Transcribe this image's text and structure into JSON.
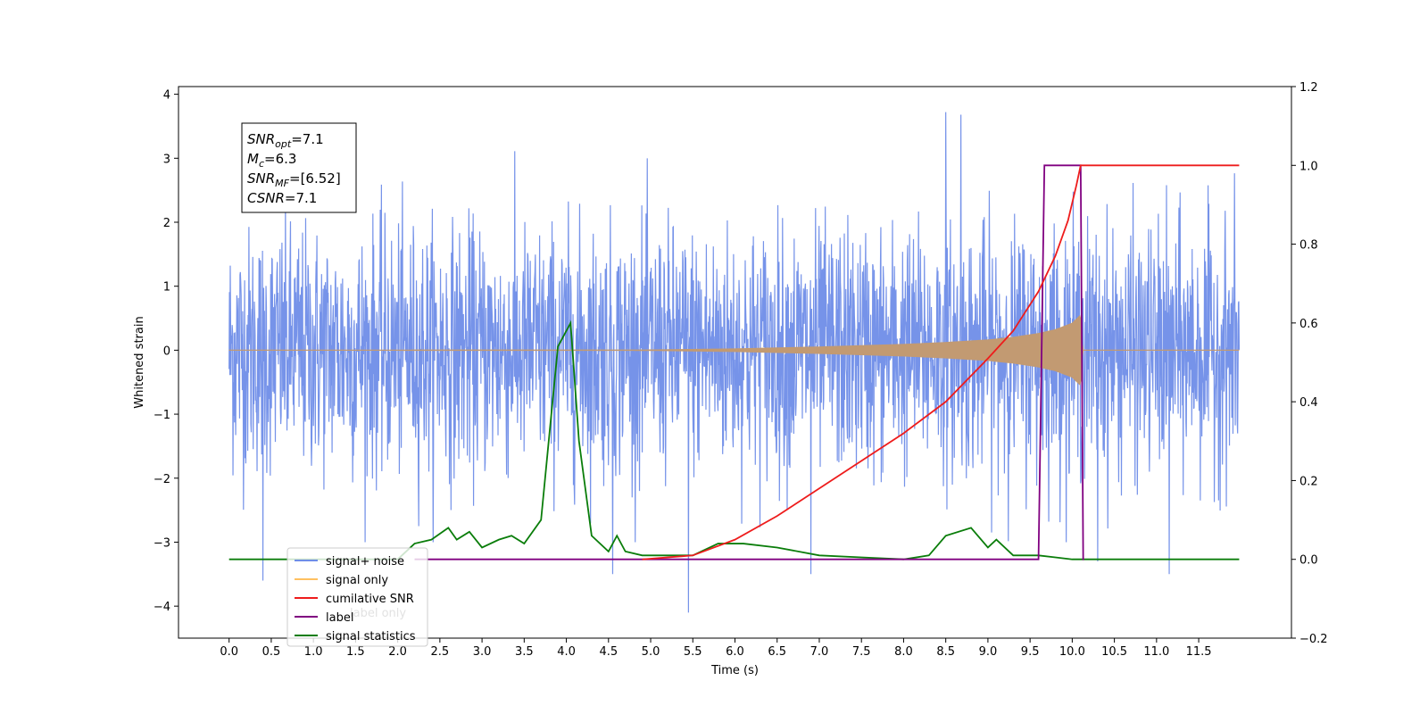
{
  "chart_data": {
    "type": "line",
    "xlabel": "Time (s)",
    "ylabel_left": "Whitened strain",
    "ylabel_right": "",
    "xlim": [
      -0.6,
      12.6
    ],
    "ylim_left": [
      -4.5,
      4.12
    ],
    "ylim_right": [
      -0.2,
      1.2
    ],
    "x_ticks": [
      "0.0",
      "0.5",
      "1.0",
      "1.5",
      "2.0",
      "2.5",
      "3.0",
      "3.5",
      "4.0",
      "4.5",
      "5.0",
      "5.5",
      "6.0",
      "6.5",
      "7.0",
      "7.5",
      "8.0",
      "8.5",
      "9.0",
      "9.5",
      "10.0",
      "10.5",
      "11.0",
      "11.5"
    ],
    "y_ticks_left": [
      "−4",
      "−3",
      "−2",
      "−1",
      "0",
      "1",
      "2",
      "3",
      "4"
    ],
    "y_ticks_right": [
      "−0.2",
      "0.0",
      "0.2",
      "0.4",
      "0.6",
      "0.8",
      "1.0",
      "1.2"
    ],
    "grid": false,
    "legend_position": "lower-left",
    "annotation": {
      "lines": [
        {
          "sym": "SNR",
          "sub": "opt",
          "rest": "=7.1"
        },
        {
          "sym": "M",
          "sub": "c",
          "rest": "=6.3"
        },
        {
          "sym": "SNR",
          "sub": "MF",
          "rest": "=[6.52]"
        },
        {
          "sym": "CSNR",
          "sub": "",
          "rest": "=7.1"
        }
      ]
    },
    "series": [
      {
        "name": "signal+ noise",
        "axis": "left",
        "color": "#6f8de8",
        "description": "whitened noise, t 0.0–11.98 s, mostly within about −2.4 to 2.6, peaks near 3.7",
        "x_range": [
          0.0,
          11.98
        ],
        "approx_envelope": [
          -2.4,
          2.6
        ],
        "extreme_points": [
          [
            0.4,
            -3.6
          ],
          [
            5.45,
            -4.1
          ],
          [
            8.5,
            3.72
          ],
          [
            8.68,
            3.68
          ],
          [
            4.55,
            -3.5
          ],
          [
            11.15,
            -3.5
          ],
          [
            10.3,
            -3.3
          ],
          [
            6.9,
            -3.5
          ]
        ]
      },
      {
        "name": "signal only",
        "axis": "left",
        "color": "#ffb347",
        "description": "chirp, near zero until ~6 s, amplitude growing to ~0.5 at merger ~10.1 s, then zero",
        "envelope": {
          "t": [
            0.0,
            5.0,
            6.0,
            7.0,
            8.0,
            8.5,
            9.0,
            9.3,
            9.6,
            9.8,
            10.0,
            10.1,
            10.12,
            11.98
          ],
          "amp": [
            0.0,
            0.003,
            0.02,
            0.05,
            0.09,
            0.12,
            0.16,
            0.2,
            0.26,
            0.32,
            0.42,
            0.55,
            0.0,
            0.0
          ]
        }
      },
      {
        "name": "cumilative SNR",
        "axis": "right",
        "color": "#ee1c1c",
        "x": [
          4.9,
          5.5,
          6.0,
          6.5,
          7.0,
          7.5,
          8.0,
          8.5,
          9.0,
          9.3,
          9.6,
          9.8,
          9.95,
          10.05,
          10.1,
          10.15,
          11.98
        ],
        "y": [
          0.0,
          0.01,
          0.05,
          0.11,
          0.18,
          0.25,
          0.32,
          0.4,
          0.51,
          0.58,
          0.68,
          0.77,
          0.86,
          0.95,
          1.0,
          1.0,
          1.0
        ]
      },
      {
        "name": "label",
        "axis": "right",
        "color": "#800080",
        "x": [
          2.2,
          9.6,
          9.67,
          10.1,
          10.13,
          10.14
        ],
        "y": [
          0.0,
          0.0,
          1.0,
          1.0,
          0.0,
          0.0
        ]
      },
      {
        "name": "signal statistics",
        "axis": "right",
        "color": "#0a7d0a",
        "x": [
          0.0,
          2.0,
          2.2,
          2.4,
          2.6,
          2.7,
          2.85,
          3.0,
          3.2,
          3.35,
          3.5,
          3.7,
          3.9,
          4.05,
          4.15,
          4.3,
          4.5,
          4.6,
          4.7,
          4.9,
          5.2,
          5.5,
          5.8,
          6.1,
          6.5,
          7.0,
          7.5,
          8.0,
          8.3,
          8.5,
          8.8,
          9.0,
          9.1,
          9.3,
          9.6,
          9.8,
          10.0,
          11.98
        ],
        "y": [
          0.0,
          0.0,
          0.04,
          0.05,
          0.08,
          0.05,
          0.07,
          0.03,
          0.05,
          0.06,
          0.04,
          0.1,
          0.54,
          0.6,
          0.3,
          0.06,
          0.02,
          0.06,
          0.02,
          0.01,
          0.01,
          0.01,
          0.04,
          0.04,
          0.03,
          0.01,
          0.005,
          0.0,
          0.01,
          0.06,
          0.08,
          0.03,
          0.05,
          0.01,
          0.01,
          0.005,
          0.0,
          0.0
        ]
      }
    ]
  },
  "legend": {
    "items": [
      {
        "label": "signal+ noise",
        "color": "#6f8de8"
      },
      {
        "label": "signal only",
        "color": "#ffc060"
      },
      {
        "label": "cumilative SNR",
        "color": "#ee1c1c"
      },
      {
        "label": "label",
        "color": "#800080"
      },
      {
        "label": "signal statistics",
        "color": "#0a7d0a"
      }
    ],
    "hidden_labels": [
      "label only"
    ]
  }
}
